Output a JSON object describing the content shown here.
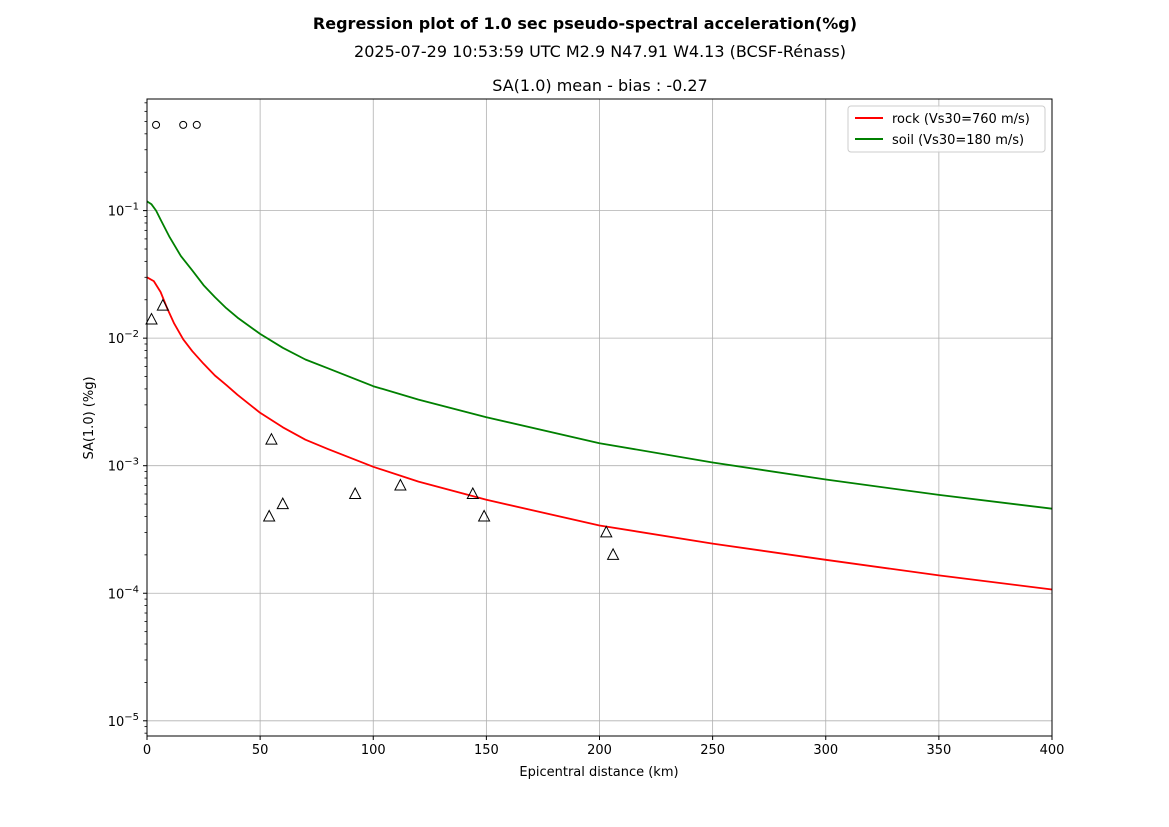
{
  "chart_data": {
    "type": "scatter",
    "title": "Regression plot of 1.0 sec pseudo-spectral acceleration(%g)",
    "subtitle": "2025-07-29 10:53:59 UTC M2.9 N47.91 W4.13 (BCSF-Rénass)",
    "axes_title": "SA(1.0) mean - bias : -0.27",
    "xlabel": "Epicentral distance (km)",
    "ylabel": "SA(1.0) (%g)",
    "xlim": [
      0,
      400
    ],
    "ylim": [
      7.6e-06,
      0.75
    ],
    "y_scale": "log",
    "grid": true,
    "legend_position": "top-right",
    "x_ticks": [
      0,
      50,
      100,
      150,
      200,
      250,
      300,
      350,
      400
    ],
    "x_tick_labels": [
      "0",
      "50",
      "100",
      "150",
      "200",
      "250",
      "300",
      "350",
      "400"
    ],
    "y_ticks": [
      1e-05,
      0.0001,
      0.001,
      0.01,
      0.1
    ],
    "y_tick_labels": [
      {
        "base": "10",
        "exp": "−5"
      },
      {
        "base": "10",
        "exp": "−4"
      },
      {
        "base": "10",
        "exp": "−3"
      },
      {
        "base": "10",
        "exp": "−2"
      },
      {
        "base": "10",
        "exp": "−1"
      }
    ],
    "series": [
      {
        "name": "rock (Vs30=760 m/s)",
        "kind": "line",
        "color": "#ff0000",
        "x": [
          0,
          3,
          6,
          9,
          12,
          16,
          20,
          25,
          30,
          35,
          40,
          50,
          60,
          70,
          80,
          100,
          120,
          150,
          200,
          250,
          300,
          350,
          400
        ],
        "y": [
          0.03,
          0.028,
          0.023,
          0.017,
          0.013,
          0.0098,
          0.0079,
          0.0063,
          0.0051,
          0.0043,
          0.0036,
          0.0026,
          0.002,
          0.0016,
          0.00135,
          0.00098,
          0.00075,
          0.00054,
          0.00034,
          0.000245,
          0.000183,
          0.000138,
          0.000107
        ]
      },
      {
        "name": "soil (Vs30=180 m/s)",
        "kind": "line",
        "color": "#008000",
        "x": [
          0,
          2,
          4,
          6,
          10,
          15,
          20,
          25,
          30,
          35,
          40,
          50,
          60,
          70,
          80,
          100,
          120,
          150,
          200,
          250,
          300,
          350,
          400
        ],
        "y": [
          0.118,
          0.112,
          0.1,
          0.085,
          0.062,
          0.044,
          0.034,
          0.026,
          0.021,
          0.0172,
          0.0145,
          0.0108,
          0.0084,
          0.0068,
          0.0058,
          0.0042,
          0.0033,
          0.0024,
          0.0015,
          0.00106,
          0.00078,
          0.00059,
          0.00046
        ]
      },
      {
        "name": "",
        "kind": "marker",
        "marker": "triangle",
        "x": [
          2,
          7,
          55,
          54,
          60,
          92,
          112,
          144,
          149,
          203,
          206
        ],
        "y": [
          0.014,
          0.018,
          0.0016,
          0.0004,
          0.0005,
          0.0006,
          0.0007,
          0.0006,
          0.0004,
          0.0003,
          0.0002
        ]
      },
      {
        "name": "",
        "kind": "marker",
        "marker": "circle",
        "x": [
          4,
          16,
          22
        ],
        "y": [
          0.47,
          0.47,
          0.47
        ]
      }
    ]
  }
}
